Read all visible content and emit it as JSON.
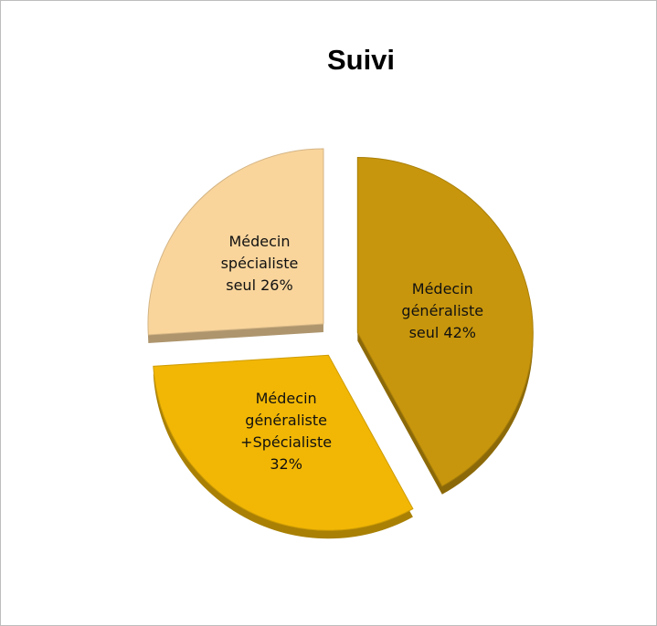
{
  "chart_data": {
    "type": "pie",
    "title": "Suivi",
    "categories": [
      "Médecin généraliste seul",
      "Médecin généraliste +Spécialiste",
      "Médecin spécialiste seul"
    ],
    "values": [
      42,
      32,
      26
    ],
    "value_labels": [
      "42%",
      "32%",
      "26%"
    ],
    "colors": [
      "#c8960c",
      "#f2b705",
      "#f9d59c"
    ]
  }
}
